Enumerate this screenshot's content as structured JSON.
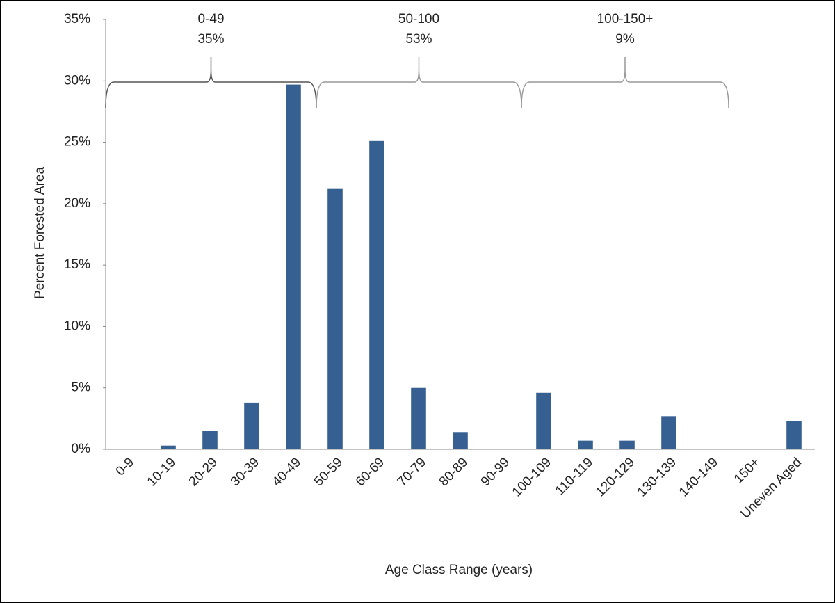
{
  "chart_data": {
    "type": "bar",
    "x_label": "Age  Class Range  (years)",
    "y_label": "Percent Forested Area",
    "categories": [
      "0-9",
      "10-19",
      "20-29",
      "30-39",
      "40-49",
      "50-59",
      "60-69",
      "70-79",
      "80-89",
      "90-99",
      "100-109",
      "110-119",
      "120-129",
      "130-139",
      "140-149",
      "150+",
      "Uneven Aged"
    ],
    "values": [
      0,
      0.3,
      1.5,
      3.8,
      29.7,
      21.2,
      25.1,
      5.0,
      1.4,
      0,
      4.6,
      0.7,
      0.7,
      2.7,
      0,
      0,
      2.3
    ],
    "color": "#376092",
    "ylim": [
      0,
      35
    ],
    "yticks": [
      {
        "value": 0,
        "label": "0%"
      },
      {
        "value": 5,
        "label": "5%"
      },
      {
        "value": 10,
        "label": "10%"
      },
      {
        "value": 15,
        "label": "15%"
      },
      {
        "value": 20,
        "label": "20%"
      },
      {
        "value": 25,
        "label": "25%"
      },
      {
        "value": 30,
        "label": "30%"
      },
      {
        "value": 35,
        "label": "35%"
      }
    ],
    "annotations": [
      {
        "range": "0-49",
        "share": "35%"
      },
      {
        "range": "50-100",
        "share": "53%"
      },
      {
        "range": "100-150+",
        "share": "9%"
      }
    ]
  }
}
